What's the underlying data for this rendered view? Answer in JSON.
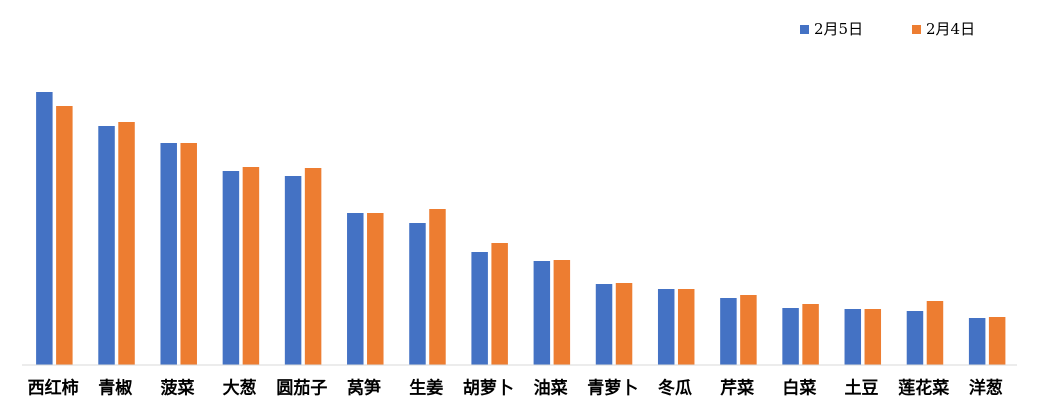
{
  "chart_data": {
    "type": "bar",
    "categories": [
      "西红柿",
      "青椒",
      "菠菜",
      "大葱",
      "圆茄子",
      "莴笋",
      "生姜",
      "胡萝卜",
      "油菜",
      "青萝卜",
      "冬瓜",
      "芹菜",
      "白菜",
      "土豆",
      "莲花菜",
      "洋葱"
    ],
    "series": [
      {
        "name": "2月5日",
        "color": "#4472c4",
        "values": [
          273,
          239,
          222,
          194,
          189,
          152,
          142,
          113,
          104,
          81,
          76,
          67,
          57,
          56,
          54,
          47
        ]
      },
      {
        "name": "2月4日",
        "color": "#ed7d31",
        "values": [
          259,
          243,
          222,
          198,
          197,
          152,
          156,
          122,
          105,
          82,
          76,
          70,
          61,
          56,
          64,
          48
        ]
      }
    ],
    "ylim": [
      0,
      300
    ],
    "grid": false,
    "legend": "top-right"
  }
}
